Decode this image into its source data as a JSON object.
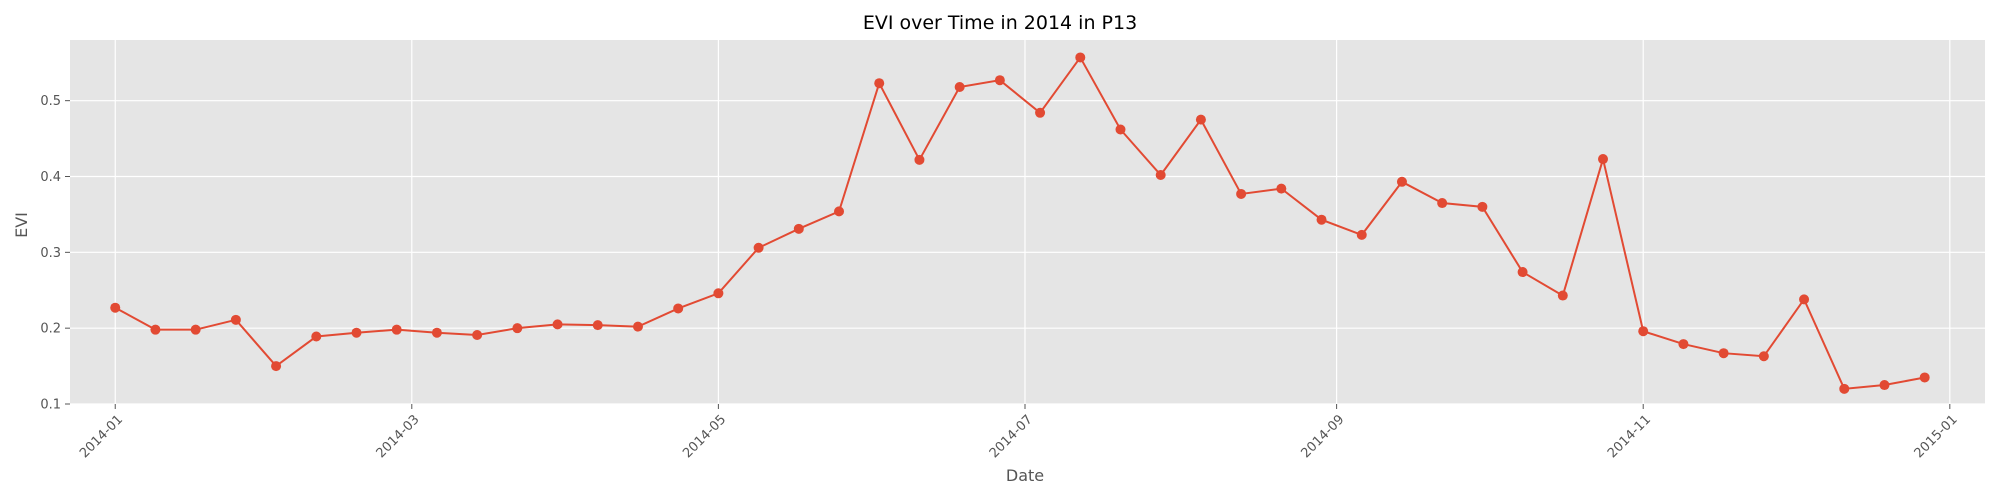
{
  "chart_data": {
    "type": "line",
    "title": "EVI over Time in 2014 in P13",
    "xlabel": "Date",
    "ylabel": "EVI",
    "x_tick_labels": [
      "2014-01",
      "2014-03",
      "2014-05",
      "2014-07",
      "2014-09",
      "2014-11",
      "2015-01"
    ],
    "x_tick_dates": [
      "2014-01-01",
      "2014-03-01",
      "2014-05-01",
      "2014-07-01",
      "2014-09-01",
      "2014-11-01",
      "2015-01-01"
    ],
    "y_ticks": [
      0.1,
      0.2,
      0.3,
      0.4,
      0.5
    ],
    "xlim": [
      "2013-12-23",
      "2015-01-08"
    ],
    "ylim": [
      0.1,
      0.58
    ],
    "grid": true,
    "line_color": "#E24A33",
    "series": [
      {
        "x": [
          "2014-01-01",
          "2014-01-09",
          "2014-01-17",
          "2014-01-25",
          "2014-02-02",
          "2014-02-10",
          "2014-02-18",
          "2014-02-26",
          "2014-03-06",
          "2014-03-14",
          "2014-03-22",
          "2014-03-30",
          "2014-04-07",
          "2014-04-15",
          "2014-04-23",
          "2014-05-01",
          "2014-05-09",
          "2014-05-17",
          "2014-05-25",
          "2014-06-02",
          "2014-06-10",
          "2014-06-18",
          "2014-06-26",
          "2014-07-04",
          "2014-07-12",
          "2014-07-20",
          "2014-07-28",
          "2014-08-05",
          "2014-08-13",
          "2014-08-21",
          "2014-08-29",
          "2014-09-06",
          "2014-09-14",
          "2014-09-22",
          "2014-09-30",
          "2014-10-08",
          "2014-10-16",
          "2014-10-24",
          "2014-11-01",
          "2014-11-09",
          "2014-11-17",
          "2014-11-25",
          "2014-12-03",
          "2014-12-11",
          "2014-12-19",
          "2014-12-27"
        ],
        "values": [
          0.227,
          0.198,
          0.198,
          0.211,
          0.15,
          0.189,
          0.194,
          0.198,
          0.194,
          0.191,
          0.2,
          0.205,
          0.204,
          0.202,
          0.226,
          0.246,
          0.306,
          0.331,
          0.354,
          0.523,
          0.422,
          0.518,
          0.527,
          0.484,
          0.557,
          0.462,
          0.402,
          0.475,
          0.377,
          0.384,
          0.343,
          0.323,
          0.393,
          0.365,
          0.36,
          0.274,
          0.243,
          0.423,
          0.196,
          0.179,
          0.167,
          0.163,
          0.238,
          0.12,
          0.125,
          0.135
        ]
      }
    ]
  }
}
